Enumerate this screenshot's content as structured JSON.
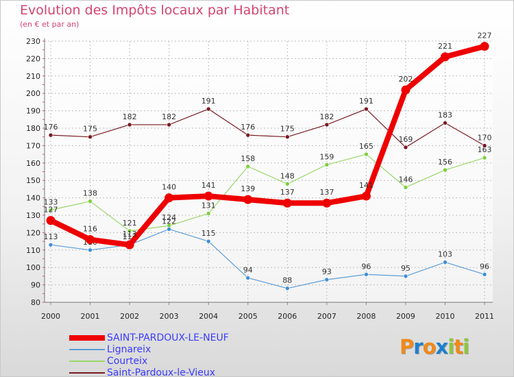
{
  "title": "Evolution des Impôts locaux par Habitant",
  "subtitle": "(en € et par an)",
  "logo": {
    "text": "Proxiti",
    "letters": [
      "P",
      "r",
      "o",
      "x",
      "i",
      "t",
      "i"
    ],
    "colors": [
      "#f08a1a",
      "#1e7fd0",
      "#f08a1a",
      "#1e7fd0",
      "#8cc63f",
      "#f08a1a",
      "#8cc63f"
    ]
  },
  "chart_data": {
    "type": "line",
    "title": "Evolution des Impôts locaux par Habitant",
    "ylabel": "(en € et par an)",
    "xlabel": "",
    "ylim": [
      80,
      230
    ],
    "yticks": [
      80,
      90,
      100,
      110,
      120,
      130,
      140,
      150,
      160,
      170,
      180,
      190,
      200,
      210,
      220,
      230
    ],
    "x": [
      "2000",
      "2001",
      "2002",
      "2003",
      "2004",
      "2005",
      "2006",
      "2007",
      "2008",
      "2009",
      "2010",
      "2011"
    ],
    "grid": true,
    "series": [
      {
        "name": "Saint-Pardoux-le-Vieux",
        "color": "#7a1a22",
        "marker": "#7a1a22",
        "width": 1.2,
        "values": [
          176,
          175,
          182,
          182,
          191,
          176,
          175,
          182,
          191,
          169,
          183,
          170
        ]
      },
      {
        "name": "Courteix",
        "color": "#9ad86a",
        "marker": "#7ccf3e",
        "width": 1.2,
        "values": [
          133,
          138,
          121,
          124,
          131,
          158,
          148,
          159,
          165,
          146,
          156,
          163
        ]
      },
      {
        "name": "Lignareix",
        "color": "#5b9ed8",
        "marker": "#3d8fd6",
        "width": 1.2,
        "values": [
          113,
          110,
          113,
          122,
          115,
          94,
          88,
          93,
          96,
          95,
          103,
          96
        ]
      },
      {
        "name": "SAINT-PARDOUX-LE-NEUF",
        "color": "#ee0000",
        "marker": "#ee0000",
        "width": 8,
        "values": [
          127,
          116,
          113,
          140,
          141,
          139,
          137,
          137,
          141,
          202,
          221,
          227
        ]
      }
    ],
    "legend": [
      {
        "name": "SAINT-PARDOUX-LE-NEUF",
        "color": "#ee0000",
        "thickness": 8
      },
      {
        "name": "Lignareix",
        "color": "#5b9ed8",
        "thickness": 2
      },
      {
        "name": "Courteix",
        "color": "#9ad86a",
        "thickness": 2
      },
      {
        "name": "Saint-Pardoux-le-Vieux",
        "color": "#7a1a22",
        "thickness": 2
      }
    ],
    "legend_position": "bottom-left"
  }
}
